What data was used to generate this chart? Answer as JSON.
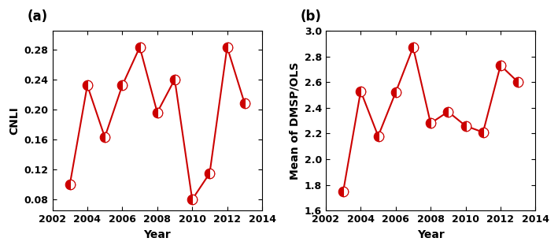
{
  "panel_a": {
    "label": "(a)",
    "xlabel": "Year",
    "ylabel": "CNLI",
    "years": [
      2003,
      2004,
      2005,
      2006,
      2007,
      2008,
      2009,
      2010,
      2011,
      2012,
      2013
    ],
    "values": [
      0.1,
      0.232,
      0.163,
      0.232,
      0.283,
      0.196,
      0.24,
      0.08,
      0.115,
      0.283,
      0.208
    ],
    "ylim": [
      0.065,
      0.305
    ],
    "yticks": [
      0.08,
      0.12,
      0.16,
      0.2,
      0.24,
      0.28
    ],
    "xlim": [
      2002,
      2014
    ],
    "xticks": [
      2002,
      2004,
      2006,
      2008,
      2010,
      2012,
      2014
    ]
  },
  "panel_b": {
    "label": "(b)",
    "xlabel": "Year",
    "ylabel": "Mean of DMSP/OLS",
    "years": [
      2003,
      2004,
      2005,
      2006,
      2007,
      2008,
      2009,
      2010,
      2011,
      2012,
      2013
    ],
    "values": [
      1.75,
      2.53,
      2.18,
      2.52,
      2.87,
      2.28,
      2.37,
      2.26,
      2.21,
      2.73,
      2.6
    ],
    "ylim": [
      1.6,
      3.0
    ],
    "yticks": [
      1.6,
      1.8,
      2.0,
      2.2,
      2.4,
      2.6,
      2.8,
      3.0
    ],
    "xlim": [
      2002,
      2014
    ],
    "xticks": [
      2002,
      2004,
      2006,
      2008,
      2010,
      2012,
      2014
    ]
  },
  "line_color": "#CC0000",
  "marker_size": 9,
  "line_width": 1.5,
  "tick_labelsize": 9,
  "axis_labelsize": 10,
  "panel_label_fontsize": 12
}
